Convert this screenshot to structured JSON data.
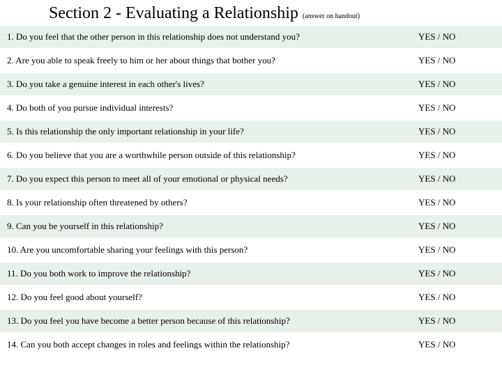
{
  "header": {
    "title": "Section  2 - Evaluating a Relationship ",
    "subtitle": "(answer on handout)"
  },
  "answer_label": "YES / NO",
  "colors": {
    "row_alt_bg": "#e8f0ea",
    "row_bg": "#ffffff",
    "text": "#000000"
  },
  "questions": [
    "1.  Do you feel that the other person in this relationship does not understand you?",
    "2.  Are you able to speak freely to him or her about things that bother you?",
    "3.  Do you take a genuine interest in each other's lives?",
    "4.  Do both of you pursue individual interests?",
    "5.  Is this relationship the only important relationship in your life?",
    "6.  Do you believe that you are a worthwhile person outside of this relationship?",
    "7.  Do you expect this person to meet all of your emotional or physical needs?",
    "8.  Is your relationship often threatened by others?",
    "9.  Can you be yourself in this relationship?",
    "10.  Are you uncomfortable sharing your feelings with this person?",
    "11.  Do you both work to improve the relationship?",
    "12.  Do you feel good about yourself?",
    "13.  Do you feel you have become a better person because of this relationship?",
    "14.  Can you both accept changes in roles and feelings within the relationship?"
  ]
}
